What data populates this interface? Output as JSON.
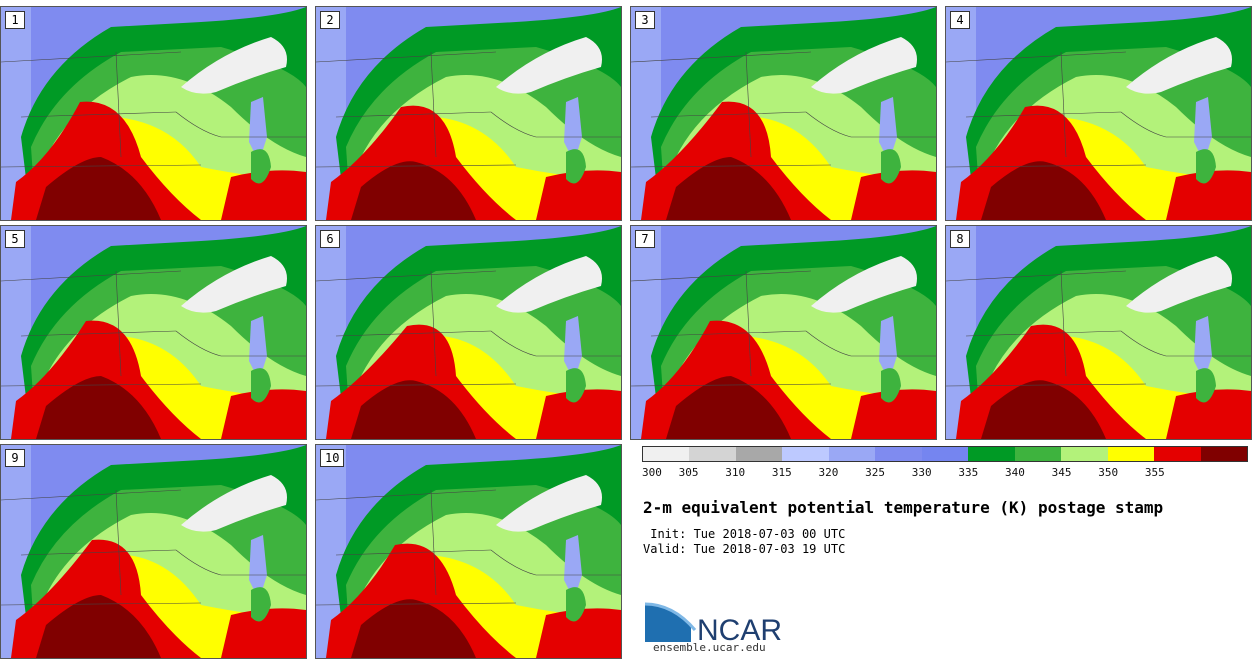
{
  "stamps": [
    {
      "label": "1"
    },
    {
      "label": "2"
    },
    {
      "label": "3"
    },
    {
      "label": "4"
    },
    {
      "label": "5"
    },
    {
      "label": "6"
    },
    {
      "label": "7"
    },
    {
      "label": "8"
    },
    {
      "label": "9"
    },
    {
      "label": "10"
    }
  ],
  "colorbar": {
    "colors": [
      "#f0f0f0",
      "#d4d4d4",
      "#a8a8a8",
      "#bdc9ff",
      "#9aa8f5",
      "#7f8bf0",
      "#7585f0",
      "#009a25",
      "#3eb33e",
      "#b3f27a",
      "#ffff00",
      "#e40000",
      "#800000"
    ],
    "ticks": [
      "300",
      "305",
      "310",
      "315",
      "320",
      "325",
      "330",
      "335",
      "340",
      "345",
      "350",
      "355"
    ]
  },
  "title": "2-m equivalent potential temperature (K) postage stamp",
  "init_line": " Init: Tue 2018-07-03 00 UTC",
  "valid_line": "Valid: Tue 2018-07-03 19 UTC",
  "logo": {
    "text": "NCAR",
    "url": "ensemble.ucar.edu",
    "color": "#1f6fb0"
  }
}
